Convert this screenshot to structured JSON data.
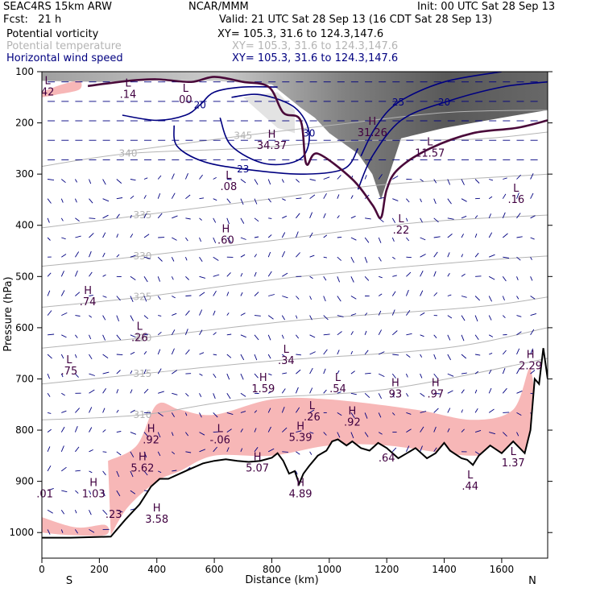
{
  "header": {
    "model": "SEAC4RS 15km ARW",
    "center": "NCAR/MMM",
    "init": "Init: 00 UTC Sat 28 Sep 13",
    "fcst_label": "Fcst:",
    "fcst_value": "21 h",
    "valid": "Valid: 21 UTC Sat 28 Sep 13 (16 CDT Sat 28 Sep 13)"
  },
  "fields": [
    {
      "name": "Potential vorticity",
      "xy": "XY= 105.3, 31.6 to 124.3,147.6",
      "color": "#000000"
    },
    {
      "name": "Potential temperature",
      "xy": "XY= 105.3, 31.6 to 124.3,147.6",
      "color": "#b4b4b4"
    },
    {
      "name": "Horizontal wind speed",
      "xy": "XY= 105.3, 31.6 to 124.3,147.6",
      "color": "#000080"
    }
  ],
  "colors": {
    "pv_shading": "#606060",
    "pv_low_shading": "#f7b7b7",
    "theta_contour": "#b4b4b4",
    "wind_contour": "#000080",
    "dynamic_tropopause": "#4a0a3a",
    "extrema_label": "#400040"
  },
  "chart_data": {
    "type": "cross-section",
    "xlabel": "Distance (km)",
    "ylabel": "Pressure (hPa)",
    "xlim": [
      0,
      1760
    ],
    "ylim": [
      1050,
      100
    ],
    "x_ticks": [
      0,
      200,
      400,
      600,
      800,
      1000,
      1200,
      1400,
      1600
    ],
    "y_ticks": [
      100,
      200,
      300,
      400,
      500,
      600,
      700,
      800,
      900,
      1000
    ],
    "left_end": "S",
    "right_end": "N",
    "terrain_surface": [
      [
        0,
        1010
      ],
      [
        100,
        1010
      ],
      [
        240,
        1008
      ],
      [
        290,
        975
      ],
      [
        340,
        945
      ],
      [
        380,
        910
      ],
      [
        410,
        895
      ],
      [
        440,
        895
      ],
      [
        480,
        885
      ],
      [
        520,
        875
      ],
      [
        560,
        865
      ],
      [
        600,
        860
      ],
      [
        640,
        857
      ],
      [
        680,
        860
      ],
      [
        720,
        862
      ],
      [
        760,
        860
      ],
      [
        800,
        854
      ],
      [
        820,
        845
      ],
      [
        840,
        860
      ],
      [
        860,
        885
      ],
      [
        880,
        880
      ],
      [
        895,
        905
      ],
      [
        910,
        885
      ],
      [
        930,
        870
      ],
      [
        960,
        850
      ],
      [
        990,
        840
      ],
      [
        1010,
        822
      ],
      [
        1030,
        818
      ],
      [
        1060,
        830
      ],
      [
        1080,
        822
      ],
      [
        1110,
        835
      ],
      [
        1140,
        840
      ],
      [
        1170,
        825
      ],
      [
        1200,
        835
      ],
      [
        1240,
        855
      ],
      [
        1270,
        845
      ],
      [
        1300,
        835
      ],
      [
        1340,
        855
      ],
      [
        1370,
        845
      ],
      [
        1400,
        825
      ],
      [
        1420,
        840
      ],
      [
        1460,
        855
      ],
      [
        1480,
        858
      ],
      [
        1500,
        868
      ],
      [
        1520,
        850
      ],
      [
        1560,
        830
      ],
      [
        1600,
        845
      ],
      [
        1640,
        822
      ],
      [
        1680,
        845
      ],
      [
        1700,
        800
      ],
      [
        1715,
        700
      ],
      [
        1730,
        710
      ],
      [
        1745,
        640
      ],
      [
        1760,
        700
      ]
    ],
    "theta_contours": [
      {
        "label": "345",
        "points": [
          [
            300,
            255
          ],
          [
            700,
            225
          ],
          [
            1000,
            205
          ],
          [
            1400,
            180
          ],
          [
            1760,
            175
          ]
        ]
      },
      {
        "label": "340",
        "points": [
          [
            0,
            285
          ],
          [
            300,
            260
          ],
          [
            700,
            250
          ],
          [
            1100,
            235
          ],
          [
            1500,
            232
          ],
          [
            1760,
            218
          ]
        ]
      },
      {
        "label": "335",
        "points": [
          [
            0,
            405
          ],
          [
            350,
            380
          ],
          [
            800,
            348
          ],
          [
            1200,
            320
          ],
          [
            1760,
            300
          ]
        ]
      },
      {
        "label": "330",
        "points": [
          [
            0,
            480
          ],
          [
            350,
            460
          ],
          [
            800,
            430
          ],
          [
            1300,
            395
          ],
          [
            1760,
            380
          ]
        ]
      },
      {
        "label": "325",
        "points": [
          [
            0,
            560
          ],
          [
            350,
            540
          ],
          [
            900,
            500
          ],
          [
            1500,
            470
          ],
          [
            1760,
            460
          ]
        ]
      },
      {
        "label": "320",
        "points": [
          [
            0,
            640
          ],
          [
            350,
            620
          ],
          [
            900,
            585
          ],
          [
            1500,
            560
          ],
          [
            1760,
            540
          ]
        ]
      },
      {
        "label": "315",
        "points": [
          [
            0,
            710
          ],
          [
            350,
            690
          ],
          [
            800,
            665
          ],
          [
            1400,
            640
          ],
          [
            1760,
            600
          ]
        ]
      },
      {
        "label": "310",
        "points": [
          [
            0,
            780
          ],
          [
            350,
            770
          ],
          [
            700,
            740
          ],
          [
            1200,
            720
          ],
          [
            1760,
            660
          ]
        ]
      }
    ],
    "wind_speed_contours": [
      {
        "label": "20",
        "points": [
          [
            280,
            185
          ],
          [
            400,
            195
          ],
          [
            500,
            185
          ],
          [
            550,
            165
          ],
          [
            600,
            140
          ],
          [
            700,
            130
          ],
          [
            820,
            130
          ]
        ]
      },
      {
        "label": "23",
        "points": [
          [
            460,
            205
          ],
          [
            470,
            245
          ],
          [
            560,
            275
          ],
          [
            700,
            290
          ],
          [
            900,
            300
          ],
          [
            1050,
            290
          ],
          [
            1100,
            250
          ]
        ]
      },
      {
        "label": "30",
        "points": [
          [
            620,
            190
          ],
          [
            660,
            245
          ],
          [
            780,
            280
          ],
          [
            900,
            270
          ],
          [
            930,
            220
          ],
          [
            880,
            170
          ],
          [
            760,
            145
          ],
          [
            660,
            150
          ]
        ]
      },
      {
        "label": "25",
        "points": [
          [
            1110,
            265
          ],
          [
            1160,
            210
          ],
          [
            1240,
            160
          ],
          [
            1400,
            120
          ],
          [
            1600,
            100
          ]
        ]
      },
      {
        "label": "20",
        "points": [
          [
            1100,
            330
          ],
          [
            1150,
            265
          ],
          [
            1250,
            195
          ],
          [
            1400,
            160
          ],
          [
            1600,
            130
          ],
          [
            1760,
            120
          ]
        ]
      }
    ],
    "dynamic_tropopause": [
      [
        160,
        128
      ],
      [
        300,
        118
      ],
      [
        400,
        115
      ],
      [
        520,
        120
      ],
      [
        600,
        110
      ],
      [
        700,
        120
      ],
      [
        790,
        130
      ],
      [
        840,
        180
      ],
      [
        900,
        195
      ],
      [
        920,
        280
      ],
      [
        960,
        260
      ],
      [
        1080,
        310
      ],
      [
        1150,
        360
      ],
      [
        1180,
        385
      ],
      [
        1200,
        330
      ],
      [
        1240,
        290
      ],
      [
        1350,
        250
      ],
      [
        1500,
        220
      ],
      [
        1650,
        210
      ],
      [
        1760,
        195
      ]
    ],
    "extrema": [
      {
        "type": "L",
        "value": "42",
        "x": 20,
        "p": 135
      },
      {
        "type": "L",
        "value": ".14",
        "x": 300,
        "p": 140
      },
      {
        "type": "L",
        "value": "00",
        "x": 500,
        "p": 150
      },
      {
        "type": "H",
        "value": "34.37",
        "x": 800,
        "p": 240
      },
      {
        "type": "L",
        "value": ".08",
        "x": 650,
        "p": 320
      },
      {
        "type": "H",
        "value": "31.26",
        "x": 1150,
        "p": 215
      },
      {
        "type": "L",
        "value": "11.57",
        "x": 1350,
        "p": 255
      },
      {
        "type": "L",
        "value": ".22",
        "x": 1250,
        "p": 405
      },
      {
        "type": "L",
        "value": ".16",
        "x": 1650,
        "p": 345
      },
      {
        "type": "H",
        "value": ".60",
        "x": 640,
        "p": 425
      },
      {
        "type": "H",
        "value": ".74",
        "x": 160,
        "p": 545
      },
      {
        "type": "L",
        "value": ".26",
        "x": 340,
        "p": 615
      },
      {
        "type": "L",
        "value": ".75",
        "x": 95,
        "p": 680
      },
      {
        "type": "L",
        "value": ".34",
        "x": 850,
        "p": 660
      },
      {
        "type": "H",
        "value": "1.59",
        "x": 770,
        "p": 715
      },
      {
        "type": "L",
        "value": ".54",
        "x": 1030,
        "p": 715
      },
      {
        "type": "H",
        "value": "93",
        "x": 1230,
        "p": 725
      },
      {
        "type": "H",
        "value": ".97",
        "x": 1370,
        "p": 725
      },
      {
        "type": "H",
        "value": "2.29",
        "x": 1700,
        "p": 670
      },
      {
        "type": "L",
        "value": ".26",
        "x": 940,
        "p": 770
      },
      {
        "type": "H",
        "value": ".92",
        "x": 1080,
        "p": 780
      },
      {
        "type": "H",
        "value": "5.39",
        "x": 900,
        "p": 810
      },
      {
        "type": "H",
        "value": ".92",
        "x": 380,
        "p": 815
      },
      {
        "type": "L",
        "value": "-.06",
        "x": 620,
        "p": 815
      },
      {
        "type": "H",
        "value": "5.62",
        "x": 350,
        "p": 870
      },
      {
        "type": "H",
        "value": "5.07",
        "x": 750,
        "p": 870
      },
      {
        "type": "H",
        "value": "1.03",
        "x": 180,
        "p": 920
      },
      {
        "type": "H",
        "value": "4.89",
        "x": 900,
        "p": 920
      },
      {
        "type": "H",
        "value": "3.58",
        "x": 400,
        "p": 970
      },
      {
        "type": "L",
        "value": ".44",
        "x": 1490,
        "p": 905
      },
      {
        "type": "L",
        "value": "1.37",
        "x": 1640,
        "p": 860
      },
      {
        "type": "",
        "value": ".01",
        "x": 10,
        "p": 920
      },
      {
        "type": "",
        "value": ".23",
        "x": 250,
        "p": 960
      },
      {
        "type": "",
        "value": ".64",
        "x": 1200,
        "p": 850
      }
    ]
  }
}
